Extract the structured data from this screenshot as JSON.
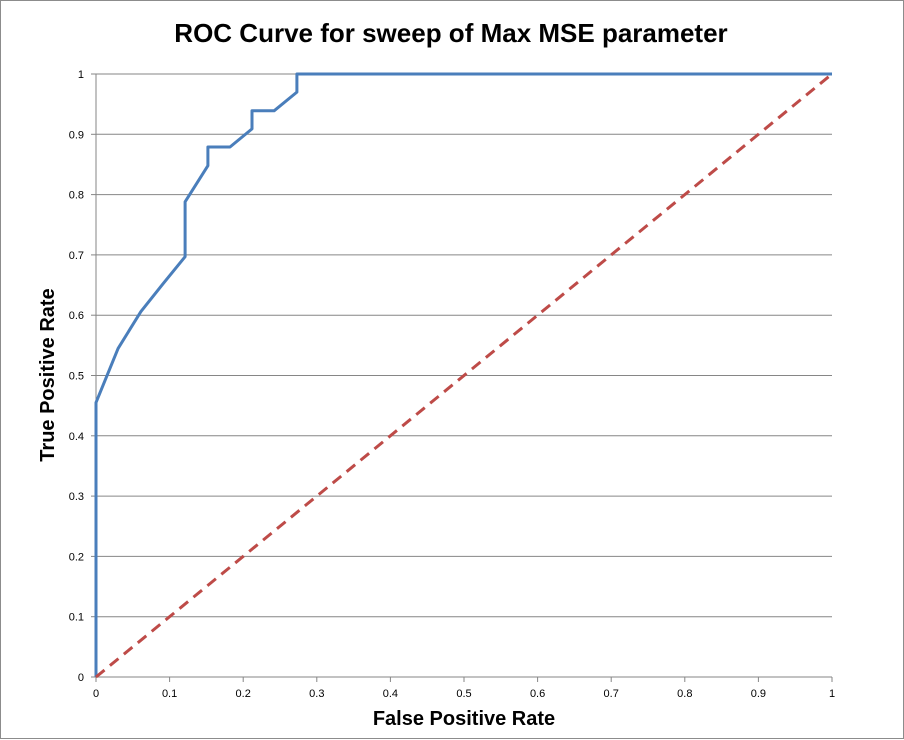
{
  "chart_data": {
    "type": "line",
    "title": "ROC Curve for sweep of Max MSE parameter",
    "xlabel": "False Positive Rate",
    "ylabel": "True Positive Rate",
    "xlim": [
      0,
      1
    ],
    "ylim": [
      0,
      1
    ],
    "x_ticks": [
      "0",
      "0.1",
      "0.2",
      "0.3",
      "0.4",
      "0.5",
      "0.6",
      "0.7",
      "0.8",
      "0.9",
      "1"
    ],
    "y_ticks": [
      "0",
      "0.1",
      "0.2",
      "0.3",
      "0.4",
      "0.5",
      "0.6",
      "0.7",
      "0.8",
      "0.9",
      "1"
    ],
    "grid": "horizontal",
    "legend": "none",
    "series": [
      {
        "style": "solid",
        "color": "#4a7ebb",
        "x": [
          0,
          0,
          0.03,
          0.061,
          0.091,
          0.121,
          0.121,
          0.152,
          0.152,
          0.182,
          0.212,
          0.212,
          0.242,
          0.273,
          0.273,
          0.5,
          1.0
        ],
        "y": [
          0,
          0.455,
          0.545,
          0.606,
          0.652,
          0.697,
          0.788,
          0.848,
          0.879,
          0.879,
          0.909,
          0.939,
          0.939,
          0.97,
          1.0,
          1.0,
          1.0
        ]
      },
      {
        "style": "dashed",
        "color": "#be4b48",
        "x": [
          0,
          1
        ],
        "y": [
          0,
          1
        ]
      }
    ]
  }
}
